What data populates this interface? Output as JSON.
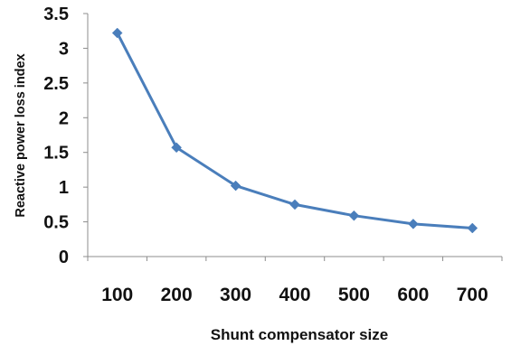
{
  "chart_data": {
    "type": "line",
    "title": "",
    "xlabel": "Shunt compensator size",
    "ylabel": "Reactive power loss index",
    "x": [
      "100",
      "200",
      "300",
      "400",
      "500",
      "600",
      "700"
    ],
    "series": [
      {
        "values": [
          3.22,
          1.57,
          1.02,
          0.75,
          0.59,
          0.47,
          0.41
        ]
      }
    ],
    "ylim": [
      0,
      3.5
    ],
    "yticks": [
      "0",
      "0.5",
      "1",
      "1.5",
      "2",
      "2.5",
      "3",
      "3.5"
    ],
    "grid": false,
    "legend": "none",
    "marker": "diamond",
    "colors": {
      "series": "#4A7EBB",
      "axis": "#8C8C8C",
      "text": "#111111"
    }
  }
}
